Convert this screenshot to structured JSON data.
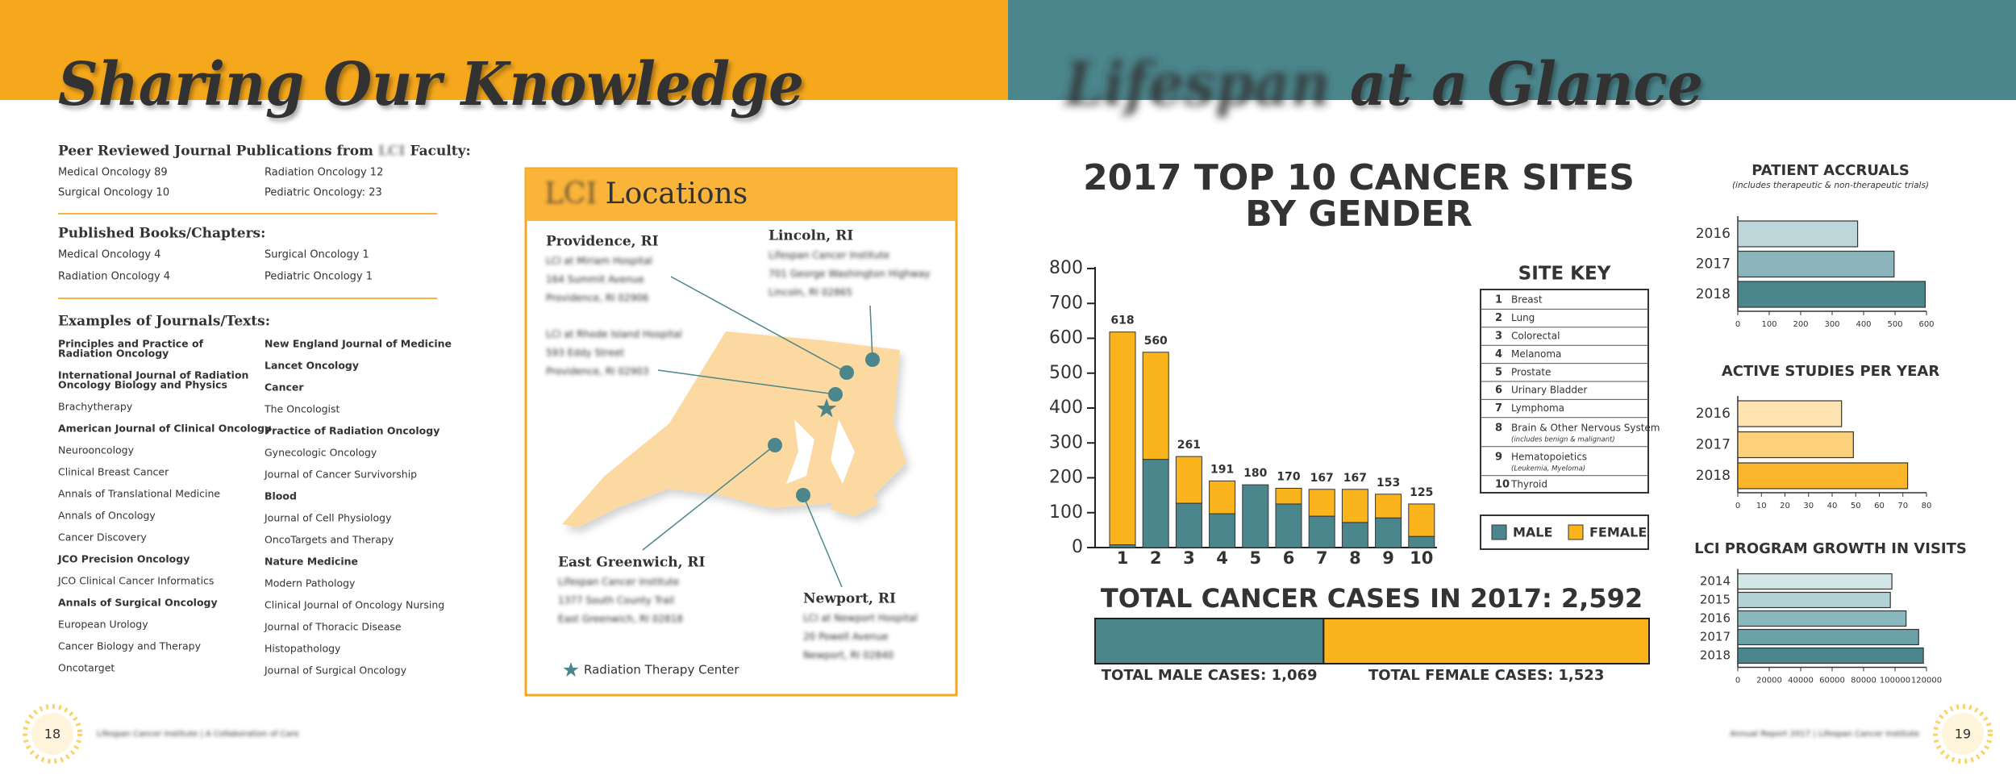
{
  "header": {
    "left_title": "Sharing Our Knowledge",
    "right_title_blurred": "Lifespan",
    "right_title": "at a Glance"
  },
  "publications": {
    "peer": {
      "heading_start": "Peer Reviewed Journal Publications from",
      "heading_blurred": "LCI",
      "heading_end": "Faculty:",
      "items": [
        "Medical Oncology 89",
        "Radiation Oncology 12",
        "Surgical Oncology 10",
        "Pediatric Oncology: 23"
      ]
    },
    "books": {
      "heading": "Published Books/Chapters:",
      "items": [
        "Medical Oncology 4",
        "Surgical Oncology 1",
        "Radiation Oncology 4",
        "Pediatric Oncology 1"
      ]
    },
    "journals": {
      "heading": "Examples of Journals/Texts:",
      "columns": [
        [
          {
            "lines": [
              "Principles and Practice of",
              "Radiation Oncology"
            ],
            "bold": true
          },
          {
            "lines": [
              "International Journal of Radiation",
              "Oncology Biology and Physics"
            ],
            "bold": true
          },
          {
            "lines": [
              "Brachytherapy"
            ],
            "bold": false
          },
          {
            "lines": [
              "American Journal of Clinical Oncology"
            ],
            "bold": true
          },
          {
            "lines": [
              "Neurooncology"
            ],
            "bold": false
          },
          {
            "lines": [
              "Clinical Breast Cancer"
            ],
            "bold": false
          },
          {
            "lines": [
              "Annals of Translational Medicine"
            ],
            "bold": false
          },
          {
            "lines": [
              "Annals of Oncology"
            ],
            "bold": false
          },
          {
            "lines": [
              "Cancer Discovery"
            ],
            "bold": false
          },
          {
            "lines": [
              "JCO Precision Oncology"
            ],
            "bold": true
          },
          {
            "lines": [
              "JCO Clinical Cancer Informatics"
            ],
            "bold": false
          },
          {
            "lines": [
              "Annals of Surgical Oncology"
            ],
            "bold": true
          },
          {
            "lines": [
              "European Urology"
            ],
            "bold": false
          },
          {
            "lines": [
              "Cancer Biology and Therapy"
            ],
            "bold": false
          },
          {
            "lines": [
              "Oncotarget"
            ],
            "bold": false
          }
        ],
        [
          {
            "lines": [
              "New England Journal of Medicine"
            ],
            "bold": true
          },
          {
            "lines": [
              "Lancet Oncology"
            ],
            "bold": true
          },
          {
            "lines": [
              "Cancer"
            ],
            "bold": true
          },
          {
            "lines": [
              "The Oncologist"
            ],
            "bold": false
          },
          {
            "lines": [
              "Practice of Radiation Oncology"
            ],
            "bold": true
          },
          {
            "lines": [
              "Gynecologic Oncology"
            ],
            "bold": false
          },
          {
            "lines": [
              "Journal of Cancer Survivorship"
            ],
            "bold": false
          },
          {
            "lines": [
              "Blood"
            ],
            "bold": true
          },
          {
            "lines": [
              "Journal of Cell Physiology"
            ],
            "bold": false
          },
          {
            "lines": [
              "OncoTargets and Therapy"
            ],
            "bold": false
          },
          {
            "lines": [
              "Nature Medicine"
            ],
            "bold": true
          },
          {
            "lines": [
              "Modern Pathology"
            ],
            "bold": false
          },
          {
            "lines": [
              "Clinical Journal of Oncology Nursing"
            ],
            "bold": false
          },
          {
            "lines": [
              "Journal of Thoracic Disease"
            ],
            "bold": false
          },
          {
            "lines": [
              "Histopathology"
            ],
            "bold": false
          },
          {
            "lines": [
              "Journal of Surgical Oncology"
            ],
            "bold": false
          }
        ]
      ]
    }
  },
  "locations": {
    "title_blurred": "LCI",
    "title": "Locations",
    "sites": [
      {
        "name": "Providence, RI",
        "addresses": [
          [
            "LCI at Miriam Hospital",
            "164 Summit Avenue",
            "Providence, RI 02906"
          ],
          [
            "LCI at Rhode Island Hospital",
            "593 Eddy Street",
            "Providence, RI 02903"
          ]
        ]
      },
      {
        "name": "Lincoln, RI",
        "addresses": [
          [
            "Lifespan Cancer Institute",
            "701 George Washington Highway",
            "Lincoln, RI 02865"
          ]
        ]
      },
      {
        "name": "East Greenwich, RI",
        "addresses": [
          [
            "Lifespan Cancer Institute",
            "1377 South County Trail",
            "East Greenwich, RI 02818"
          ]
        ]
      },
      {
        "name": "Newport, RI",
        "addresses": [
          [
            "LCI at Newport Hospital",
            "20 Powell Avenue",
            "Newport, RI 02840"
          ]
        ]
      }
    ],
    "legend": "Radiation Therapy Center"
  },
  "chart_data": [
    {
      "type": "bar",
      "stacked": true,
      "title": [
        "2017 TOP 10 CANCER SITES",
        "BY GENDER"
      ],
      "categories": [
        "1",
        "2",
        "3",
        "4",
        "5",
        "6",
        "7",
        "8",
        "9",
        "10"
      ],
      "series": [
        {
          "name": "MALE",
          "color": "#4b868d",
          "values": [
            8,
            253,
            127,
            97,
            180,
            125,
            90,
            72,
            85,
            32
          ]
        },
        {
          "name": "FEMALE",
          "color": "#fbb41c",
          "values": [
            610,
            307,
            134,
            94,
            0,
            45,
            77,
            95,
            68,
            93
          ]
        }
      ],
      "totals": [
        618,
        560,
        261,
        191,
        180,
        170,
        167,
        167,
        153,
        125
      ],
      "ylim": [
        0,
        800
      ],
      "yticks": [
        0,
        100,
        200,
        300,
        400,
        500,
        600,
        700,
        800
      ],
      "key_title": "SITE KEY",
      "key": [
        {
          "name": "Breast"
        },
        {
          "name": "Lung"
        },
        {
          "name": "Colorectal"
        },
        {
          "name": "Melanoma"
        },
        {
          "name": "Prostate"
        },
        {
          "name": "Urinary Bladder"
        },
        {
          "name": "Lymphoma"
        },
        {
          "name": "Brain & Other Nervous System",
          "note": "(includes benign & malignant)"
        },
        {
          "name": "Hematopoietics",
          "note": "(Leukemia, Myeloma)"
        },
        {
          "name": "Thyroid"
        }
      ]
    },
    {
      "type": "bar",
      "orientation": "horizontal",
      "stacked": true,
      "title": "TOTAL CANCER CASES IN 2017: 2,592",
      "values": [
        1069,
        1523
      ],
      "colors": [
        "#4b868d",
        "#fbb41c"
      ],
      "labels": [
        "TOTAL MALE CASES: 1,069",
        "TOTAL FEMALE CASES: 1,523"
      ],
      "xlim": [
        0,
        2592
      ]
    },
    {
      "type": "bar",
      "orientation": "horizontal",
      "title": "PATIENT ACCRUALS",
      "subtitle": "(includes therapeutic & non-therapeutic trials)",
      "categories": [
        "2016",
        "2017",
        "2018"
      ],
      "values": [
        381,
        497,
        596
      ],
      "colors": [
        "#bcd6d9",
        "#8bb5ba",
        "#4b868d"
      ],
      "xlim": [
        0,
        600
      ],
      "xticks": [
        0,
        100,
        200,
        300,
        400,
        500,
        600
      ]
    },
    {
      "type": "bar",
      "orientation": "horizontal",
      "title": "ACTIVE STUDIES PER YEAR",
      "categories": [
        "2016",
        "2017",
        "2018"
      ],
      "values": [
        44,
        49,
        72
      ],
      "colors": [
        "#fee4b3",
        "#fdd07c",
        "#fbb52a"
      ],
      "xlim": [
        0,
        80
      ],
      "xticks": [
        0,
        10,
        20,
        30,
        40,
        50,
        60,
        70,
        80
      ]
    },
    {
      "type": "bar",
      "orientation": "horizontal",
      "title": "LCI PROGRAM GROWTH IN VISITS",
      "categories": [
        "2014",
        "2015",
        "2016",
        "2017",
        "2018"
      ],
      "values": [
        98000,
        97000,
        107000,
        115000,
        118000
      ],
      "colors": [
        "#d3e6e7",
        "#b3d2d5",
        "#8ab8bd",
        "#6aa2a8",
        "#4b868d"
      ],
      "xlim": [
        0,
        120000
      ],
      "xticks": [
        0,
        20000,
        40000,
        60000,
        80000,
        100000,
        120000
      ]
    }
  ],
  "footer": {
    "left_page": "18",
    "left_text": "Lifespan Cancer Institute | A Collaboration of Care",
    "right_page": "19",
    "right_text": "Annual Report 2017 | Lifespan Cancer Institute"
  }
}
